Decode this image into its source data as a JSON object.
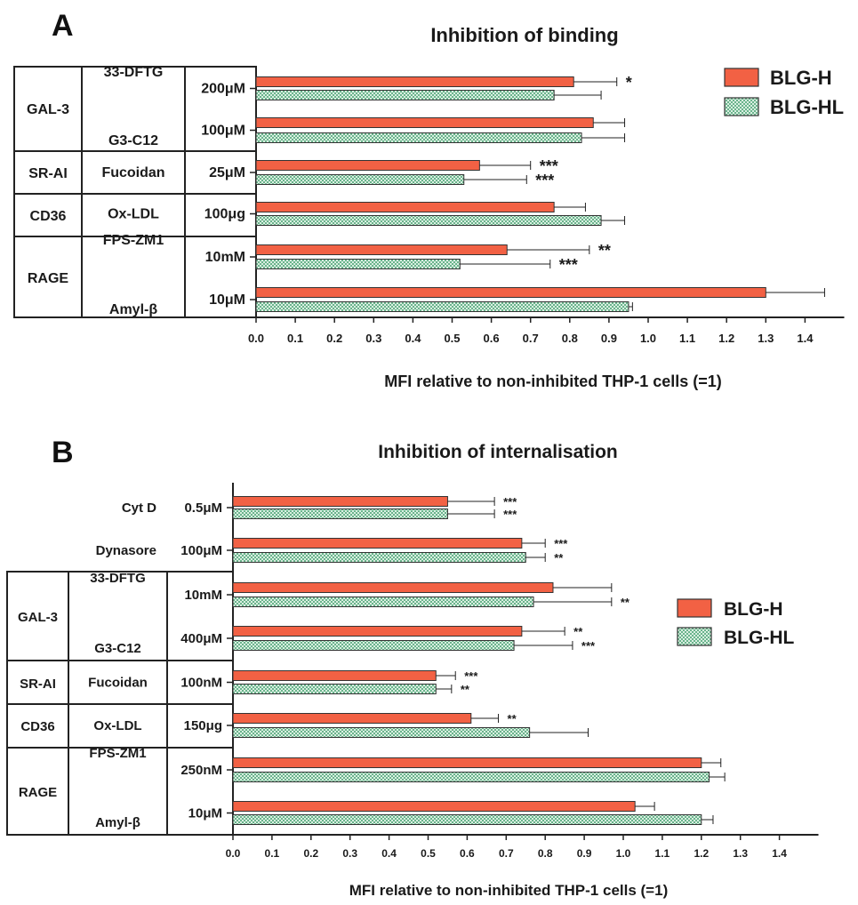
{
  "panels": [
    {
      "letter": "A"
    },
    {
      "letter": "B"
    }
  ],
  "colors": {
    "bar_h": "#f26144",
    "bar_hl": "#6ab38c",
    "bar_hl_bg": "#d9efe1",
    "axis": "#222222"
  },
  "chart_data": [
    {
      "type": "bar",
      "orientation": "horizontal",
      "title": "Inhibition of binding",
      "xlabel": "MFI relative to non-inhibited THP-1 cells (=1)",
      "xlim": [
        0,
        1.5
      ],
      "xticks": [
        "0.0",
        "0.1",
        "0.2",
        "0.3",
        "0.4",
        "0.5",
        "0.6",
        "0.7",
        "0.8",
        "0.9",
        "1.0",
        "1.1",
        "1.2",
        "1.3",
        "1.4"
      ],
      "legend": {
        "placement": "top-right",
        "entries": [
          "BLG-H",
          "BLG-HL"
        ]
      },
      "groups": [
        {
          "receptor": "GAL-3",
          "rows": [
            0,
            1
          ]
        },
        {
          "receptor": "SR-AI",
          "rows": [
            2
          ]
        },
        {
          "receptor": "CD36",
          "rows": [
            3
          ]
        },
        {
          "receptor": "RAGE",
          "rows": [
            4,
            5
          ]
        }
      ],
      "categories": [
        {
          "inhibitor": "33-DFTG",
          "dose": "200μM"
        },
        {
          "inhibitor": "G3-C12",
          "dose": "100μM"
        },
        {
          "inhibitor": "Fucoidan",
          "dose": "25μM"
        },
        {
          "inhibitor": "Ox-LDL",
          "dose": "100μg"
        },
        {
          "inhibitor": "FPS-ZM1",
          "dose": "10mM"
        },
        {
          "inhibitor": "Amyl-β",
          "dose": "10μM"
        }
      ],
      "series": [
        {
          "name": "BLG-H",
          "values": [
            0.81,
            0.86,
            0.57,
            0.76,
            0.64,
            1.3
          ],
          "errors": [
            0.11,
            0.08,
            0.13,
            0.08,
            0.21,
            0.15
          ],
          "significance": [
            "*",
            "",
            "***",
            "",
            "**",
            ""
          ]
        },
        {
          "name": "BLG-HL",
          "values": [
            0.76,
            0.83,
            0.53,
            0.88,
            0.52,
            0.95
          ],
          "errors": [
            0.12,
            0.11,
            0.16,
            0.06,
            0.23,
            0.01
          ],
          "significance": [
            "",
            "",
            "***",
            "",
            "***",
            ""
          ]
        }
      ]
    },
    {
      "type": "bar",
      "orientation": "horizontal",
      "title": "Inhibition of internalisation",
      "xlabel": "MFI relative to non-inhibited THP-1 cells (=1)",
      "xlim": [
        0,
        1.5
      ],
      "xticks": [
        "0.0",
        "0.1",
        "0.2",
        "0.3",
        "0.4",
        "0.5",
        "0.6",
        "0.7",
        "0.8",
        "0.9",
        "1.0",
        "1.1",
        "1.2",
        "1.3",
        "1.4"
      ],
      "legend": {
        "placement": "center-right",
        "entries": [
          "BLG-H",
          "BLG-HL"
        ]
      },
      "groups": [
        {
          "receptor": "GAL-3",
          "rows": [
            2,
            3
          ]
        },
        {
          "receptor": "SR-AI",
          "rows": [
            4
          ]
        },
        {
          "receptor": "CD36",
          "rows": [
            5
          ]
        },
        {
          "receptor": "RAGE",
          "rows": [
            6,
            7
          ]
        }
      ],
      "categories": [
        {
          "inhibitor": "Cyt D",
          "dose": "0.5μM"
        },
        {
          "inhibitor": "Dynasore",
          "dose": "100μM"
        },
        {
          "inhibitor": "33-DFTG",
          "dose": "10mM"
        },
        {
          "inhibitor": "G3-C12",
          "dose": "400μM"
        },
        {
          "inhibitor": "Fucoidan",
          "dose": "100nM"
        },
        {
          "inhibitor": "Ox-LDL",
          "dose": "150μg"
        },
        {
          "inhibitor": "FPS-ZM1",
          "dose": "250nM"
        },
        {
          "inhibitor": "Amyl-β",
          "dose": "10μM"
        }
      ],
      "series": [
        {
          "name": "BLG-H",
          "values": [
            0.55,
            0.74,
            0.82,
            0.74,
            0.52,
            0.61,
            1.2,
            1.03
          ],
          "errors": [
            0.12,
            0.06,
            0.15,
            0.11,
            0.05,
            0.07,
            0.05,
            0.05
          ],
          "significance": [
            "***",
            "***",
            "",
            "**",
            "***",
            "**",
            "",
            ""
          ]
        },
        {
          "name": "BLG-HL",
          "values": [
            0.55,
            0.75,
            0.77,
            0.72,
            0.52,
            0.76,
            1.22,
            1.2
          ],
          "errors": [
            0.12,
            0.05,
            0.2,
            0.15,
            0.04,
            0.15,
            0.04,
            0.03
          ],
          "significance": [
            "***",
            "**",
            "**",
            "***",
            "**",
            "",
            "",
            ""
          ]
        }
      ]
    }
  ]
}
